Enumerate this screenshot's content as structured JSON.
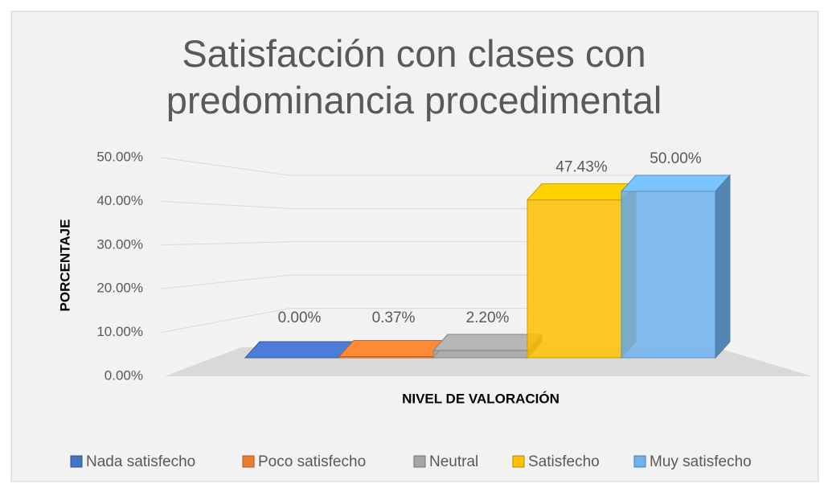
{
  "chart_data": {
    "type": "bar",
    "title": "Satisfacción con clases con predominancia procedimental",
    "x_label": "NIVEL DE VALORACIÓN",
    "y_label": "PORCENTAJE",
    "series": [
      {
        "name": "Nada satisfecho",
        "color": "#4472c4",
        "values": [
          0
        ],
        "value_labels": [
          "0.00%"
        ]
      },
      {
        "name": "Poco satisfecho",
        "color": "#ed7d31",
        "values": [
          0.37
        ],
        "value_labels": [
          "0.37%"
        ]
      },
      {
        "name": "Neutral",
        "color": "#a5a5a5",
        "values": [
          2.2
        ],
        "value_labels": [
          "2.20%"
        ]
      },
      {
        "name": "Satisfecho",
        "color": "#ffc000",
        "values": [
          47.43
        ],
        "value_labels": [
          "47.43%"
        ]
      },
      {
        "name": "Muy satisfecho",
        "color": "#6fb2ee",
        "values": [
          50
        ],
        "value_labels": [
          "50.00%"
        ]
      }
    ],
    "ylim": [
      0,
      50
    ],
    "yticks": [
      {
        "value": 0,
        "label": "0.00%"
      },
      {
        "value": 10,
        "label": "10.00%"
      },
      {
        "value": 20,
        "label": "20.00%"
      },
      {
        "value": 30,
        "label": "30.00%"
      },
      {
        "value": 40,
        "label": "40.00%"
      },
      {
        "value": 50,
        "label": "50.00%"
      }
    ],
    "grid": true,
    "legend": "bottom"
  }
}
